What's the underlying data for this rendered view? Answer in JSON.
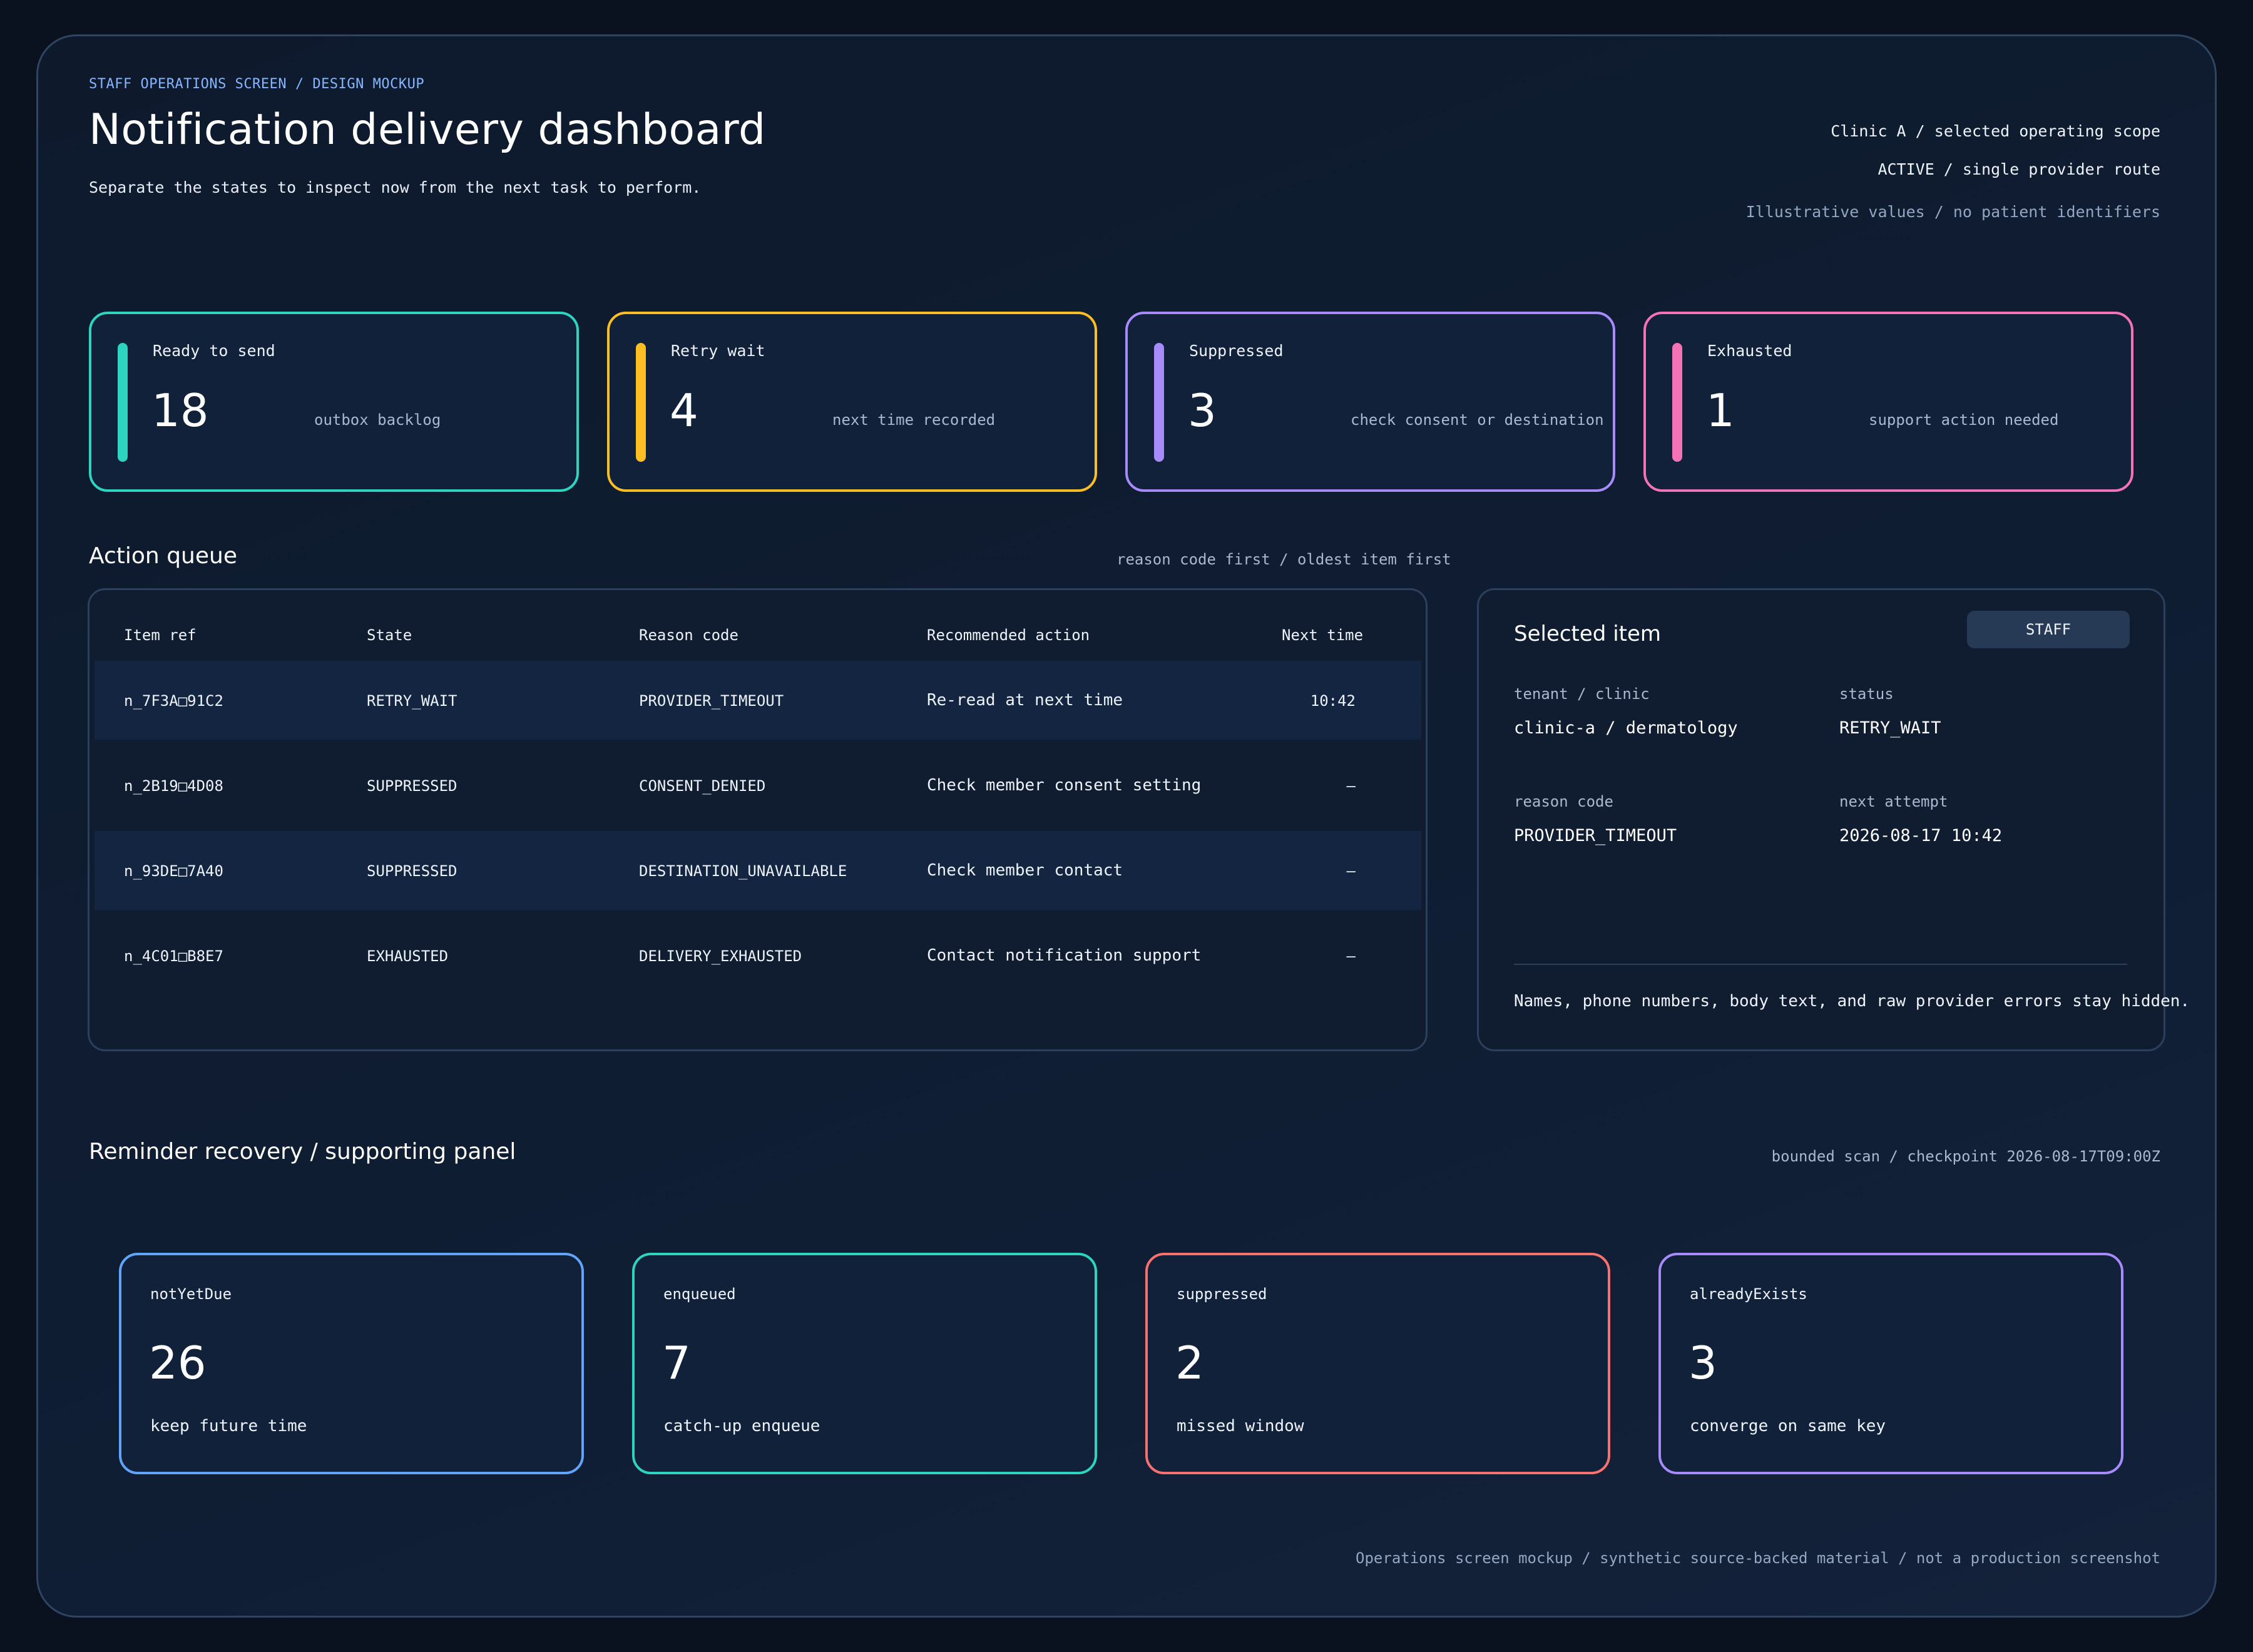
{
  "header": {
    "eyebrow": "STAFF OPERATIONS SCREEN / DESIGN MOCKUP",
    "title": "Notification delivery dashboard",
    "subtitle": "Separate the states to inspect now from the next task to perform.",
    "scope": "Clinic A / selected operating scope",
    "route": "ACTIVE / single provider route",
    "disclaimer": "Illustrative values / no patient identifiers"
  },
  "kpis": [
    {
      "label": "Ready to send",
      "value": "18",
      "note": "outbox backlog",
      "color": "#2dd4bf"
    },
    {
      "label": "Retry wait",
      "value": "4",
      "note": "next time recorded",
      "color": "#fbbf24"
    },
    {
      "label": "Suppressed",
      "value": "3",
      "note": "check consent or destination",
      "color": "#a78bfa"
    },
    {
      "label": "Exhausted",
      "value": "1",
      "note": "support action needed",
      "color": "#f472b6"
    }
  ],
  "queue": {
    "title": "Action queue",
    "sort_note": "reason code first / oldest item first",
    "columns": [
      "Item ref",
      "State",
      "Reason code",
      "Recommended action",
      "Next time"
    ],
    "rows": [
      {
        "ref": "n_7F3A□91C2",
        "state": "RETRY_WAIT",
        "reason": "PROVIDER_TIMEOUT",
        "action": "Re-read at next time",
        "next": "10:42"
      },
      {
        "ref": "n_2B19□4D08",
        "state": "SUPPRESSED",
        "reason": "CONSENT_DENIED",
        "action": "Check member consent setting",
        "next": "–"
      },
      {
        "ref": "n_93DE□7A40",
        "state": "SUPPRESSED",
        "reason": "DESTINATION_UNAVAILABLE",
        "action": "Check member contact",
        "next": "–"
      },
      {
        "ref": "n_4C01□B8E7",
        "state": "EXHAUSTED",
        "reason": "DELIVERY_EXHAUSTED",
        "action": "Contact notification support",
        "next": "–"
      }
    ]
  },
  "detail": {
    "title": "Selected item",
    "badge": "STAFF",
    "tenant_label": "tenant / clinic",
    "tenant_value": "clinic-a / dermatology",
    "status_label": "status",
    "status_value": "RETRY_WAIT",
    "reason_label": "reason code",
    "reason_value": "PROVIDER_TIMEOUT",
    "next_label": "next attempt",
    "next_value": "2026-08-17 10:42",
    "privacy_note": "Names, phone numbers, body text, and raw provider errors stay hidden."
  },
  "recovery": {
    "title": "Reminder recovery / supporting panel",
    "checkpoint": "bounded scan / checkpoint 2026-08-17T09:00Z",
    "cards": [
      {
        "label": "notYetDue",
        "value": "26",
        "desc": "keep future time",
        "color": "#60a5fa"
      },
      {
        "label": "enqueued",
        "value": "7",
        "desc": "catch-up enqueue",
        "color": "#2dd4bf"
      },
      {
        "label": "suppressed",
        "value": "2",
        "desc": "missed window",
        "color": "#f87171"
      },
      {
        "label": "alreadyExists",
        "value": "3",
        "desc": "converge on same key",
        "color": "#a78bfa"
      }
    ]
  },
  "footer": "Operations screen mockup / synthetic source-backed material / not a production screenshot"
}
